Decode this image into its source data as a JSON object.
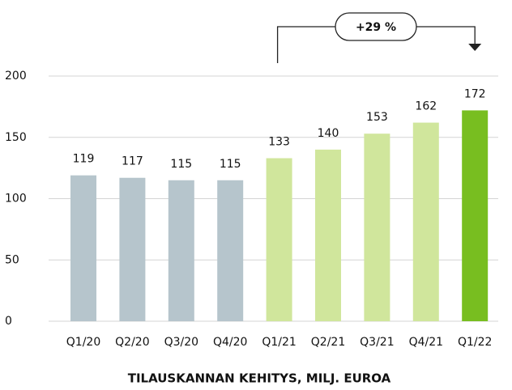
{
  "chart_data": {
    "type": "bar",
    "xlabel": "TILAUSKANNAN KEHITYS, MILJ. EUROA",
    "annotation": "+29 %",
    "categories": [
      "Q1/20",
      "Q2/20",
      "Q3/20",
      "Q4/20",
      "Q1/21",
      "Q2/21",
      "Q3/21",
      "Q4/21",
      "Q1/22"
    ],
    "values": [
      119,
      117,
      115,
      115,
      133,
      140,
      153,
      162,
      172
    ],
    "colors": [
      "#b6c5cc",
      "#b6c5cc",
      "#b6c5cc",
      "#b6c5cc",
      "#d0e69c",
      "#d0e69c",
      "#d0e69c",
      "#d0e69c",
      "#78be20"
    ],
    "ylim": [
      0,
      200
    ],
    "yticks": [
      0,
      50,
      100,
      150,
      200
    ],
    "grid": true
  }
}
